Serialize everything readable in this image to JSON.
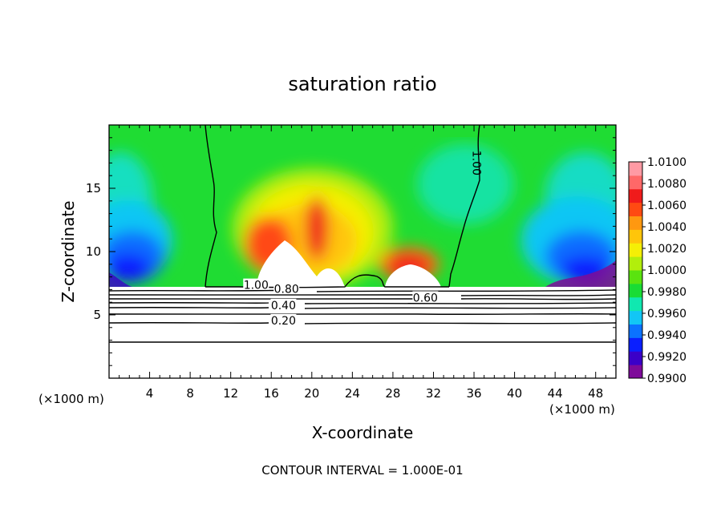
{
  "chart_data": {
    "type": "heatmap",
    "title": "saturation ratio",
    "xlabel": "X-coordinate",
    "ylabel": "Z-coordinate",
    "x_units": "(×1000 m)",
    "y_units": "(×1000 m)",
    "xlim": [
      0,
      50
    ],
    "ylim": [
      0,
      20
    ],
    "x_ticks": [
      4,
      8,
      12,
      16,
      20,
      24,
      28,
      32,
      36,
      40,
      44,
      48
    ],
    "y_ticks": [
      5,
      10,
      15
    ],
    "note": "CONTOUR INTERVAL = 1.000E-01",
    "colorbar": {
      "ticks": [
        "1.0100",
        "1.0080",
        "1.0060",
        "1.0040",
        "1.0020",
        "1.0000",
        "0.9980",
        "0.9960",
        "0.9940",
        "0.9920",
        "0.9900"
      ],
      "colors": [
        "#7e0a9a",
        "#3b00c8",
        "#0a1fff",
        "#0b72ff",
        "#12c6f5",
        "#10e8b0",
        "#19dc34",
        "#5ae30f",
        "#b2ee0c",
        "#f5ef06",
        "#ffc50a",
        "#ff9810",
        "#ff4a12",
        "#f01b1b",
        "#ff6868",
        "#ff9aa4"
      ]
    },
    "contour_labels": [
      {
        "text": "1.00",
        "x": 14.5,
        "z": 7.3
      },
      {
        "text": "0.80",
        "x": 17.5,
        "z": 7.0
      },
      {
        "text": "0.60",
        "x": 31.2,
        "z": 6.3
      },
      {
        "text": "0.40",
        "x": 17.2,
        "z": 5.7
      },
      {
        "text": "0.20",
        "x": 17.2,
        "z": 4.5
      },
      {
        "text": "1.00",
        "x": 36.2,
        "z": 17.0
      }
    ],
    "contour_levels": [
      1.0,
      0.8,
      0.6,
      0.4,
      0.2
    ],
    "cloud_base_z": 7.3
  }
}
